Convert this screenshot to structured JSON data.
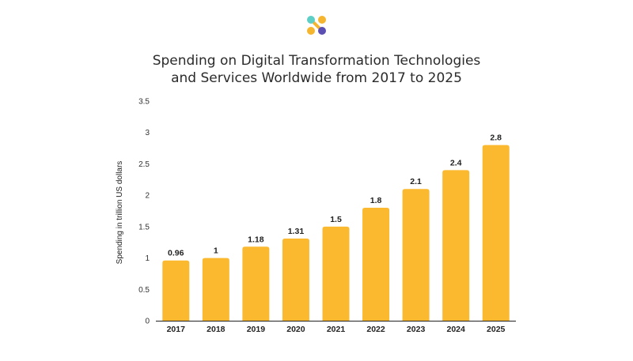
{
  "logo": {
    "icon": "brand-logo-icon",
    "colors": [
      "#5ecfc6",
      "#f6b52e",
      "#5b4fb3"
    ]
  },
  "chart_data": {
    "type": "bar",
    "title_lines": [
      "Spending on Digital Transformation Technologies",
      "and Services Worldwide from 2017 to 2025"
    ],
    "categories": [
      "2017",
      "2018",
      "2019",
      "2020",
      "2021",
      "2022",
      "2023",
      "2024",
      "2025"
    ],
    "values": [
      0.96,
      1,
      1.18,
      1.31,
      1.5,
      1.8,
      2.1,
      2.4,
      2.8
    ],
    "data_labels": [
      "0.96",
      "1",
      "1.18",
      "1.31",
      "1.5",
      "1.8",
      "2.1",
      "2.4",
      "2.8"
    ],
    "ylabel": "Spending in trillion US dollars",
    "xlabel": "",
    "ylim": [
      0,
      3.5
    ],
    "yticks": [
      "0",
      "0.5",
      "1",
      "1.5",
      "2",
      "2.5",
      "3",
      "3.5"
    ],
    "grid": false,
    "bar_color": "#fbb92f"
  }
}
